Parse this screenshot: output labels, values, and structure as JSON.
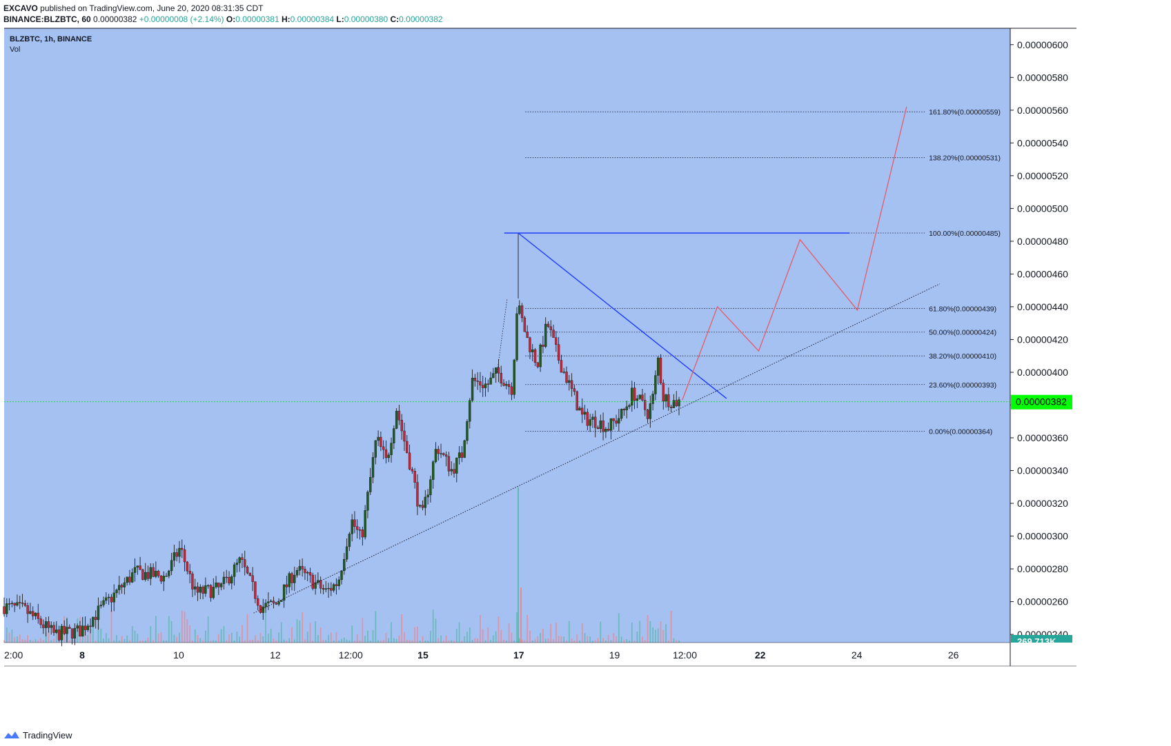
{
  "header": {
    "author": "EXCAVO",
    "published": "published on TradingView.com, June 20, 2020 08:31:35 CDT",
    "symbol": "BINANCE:BLZBTC, 60",
    "last": "0.00000382",
    "change": "+0.00000008 (+2.14%)",
    "o_label": "O:",
    "o": "0.00000381",
    "h_label": "H:",
    "h": "0.00000384",
    "l_label": "L:",
    "l": "0.00000380",
    "c_label": "C:",
    "c": "0.00000382"
  },
  "legend": {
    "title": "BLZBTC, 1h, BINANCE",
    "vol": "Vol"
  },
  "footer": {
    "brand": "TradingView"
  },
  "colors": {
    "background": "#a5c1f2",
    "up": "#26a69a",
    "down": "#ef5350",
    "candle_up_body": "#1e5b1c",
    "candle_down_body": "#c6263a",
    "price_line": "#00e000",
    "price_badge": "#00ff00",
    "resistance": "#1e3cff",
    "projection": "#e06070",
    "volume_badge": "#26a69a"
  },
  "chart_data": {
    "type": "candlestick",
    "y_axis": {
      "range": [
        2.35e-06,
        6.1e-06
      ],
      "ticks": [
        "0.00000240",
        "0.00000260",
        "0.00000280",
        "0.00000300",
        "0.00000320",
        "0.00000340",
        "0.00000360",
        "0.00000380",
        "0.00000400",
        "0.00000420",
        "0.00000440",
        "0.00000460",
        "0.00000480",
        "0.00000500",
        "0.00000520",
        "0.00000540",
        "0.00000560",
        "0.00000580",
        "0.00000600"
      ],
      "tick_values": [
        2.4,
        2.6,
        2.8,
        3.0,
        3.2,
        3.4,
        3.6,
        3.8,
        4.0,
        4.2,
        4.4,
        4.6,
        4.8,
        5.0,
        5.2,
        5.4,
        5.6,
        5.8,
        6.0
      ]
    },
    "x_axis": {
      "ticks": [
        {
          "label": "2:00",
          "bold": false,
          "pos": 0.0
        },
        {
          "label": "8",
          "bold": true,
          "pos": 0.0775
        },
        {
          "label": "10",
          "bold": false,
          "pos": 0.1735
        },
        {
          "label": "12",
          "bold": false,
          "pos": 0.2695
        },
        {
          "label": "12:00",
          "bold": false,
          "pos": 0.3445
        },
        {
          "label": "15",
          "bold": true,
          "pos": 0.4163
        },
        {
          "label": "17",
          "bold": true,
          "pos": 0.5115
        },
        {
          "label": "19",
          "bold": false,
          "pos": 0.6067
        },
        {
          "label": "12:00",
          "bold": false,
          "pos": 0.6766
        },
        {
          "label": "22",
          "bold": true,
          "pos": 0.7515
        },
        {
          "label": "24",
          "bold": false,
          "pos": 0.8475
        },
        {
          "label": "26",
          "bold": false,
          "pos": 0.9435
        }
      ]
    },
    "last_price": {
      "label": "0.00000382",
      "value": 3.82
    },
    "volume_label": "269.713K",
    "fib_levels": [
      {
        "label": "161.80%(0.00000559)",
        "value": 5.59
      },
      {
        "label": "138.20%(0.00000531)",
        "value": 5.31
      },
      {
        "label": "100.00%(0.00000485)",
        "value": 4.85
      },
      {
        "label": "61.80%(0.00000439)",
        "value": 4.39
      },
      {
        "label": "50.00%(0.00000424)",
        "value": 4.245
      },
      {
        "label": "38.20%(0.00000410)",
        "value": 4.1
      },
      {
        "label": "23.60%(0.00000393)",
        "value": 3.925
      },
      {
        "label": "0.00%(0.00000364)",
        "value": 3.64
      }
    ],
    "resistance_horizontal": {
      "value": 4.85,
      "from": 0.497,
      "to": 0.84
    },
    "resistance_diagonal": [
      {
        "t": 0.511,
        "v": 4.85
      },
      {
        "t": 0.718,
        "v": 3.84
      }
    ],
    "support_diagonal": [
      {
        "t": 0.248,
        "v": 2.53
      },
      {
        "t": 0.93,
        "v": 4.54
      }
    ],
    "projection_path": [
      {
        "t": 0.674,
        "v": 3.83
      },
      {
        "t": 0.709,
        "v": 4.4
      },
      {
        "t": 0.75,
        "v": 4.13
      },
      {
        "t": 0.791,
        "v": 4.81
      },
      {
        "t": 0.848,
        "v": 4.38
      },
      {
        "t": 0.897,
        "v": 5.62
      }
    ],
    "candle_path": [
      [
        0.0,
        2.57
      ],
      [
        0.02,
        2.55
      ],
      [
        0.05,
        2.4
      ],
      [
        0.075,
        2.42
      ],
      [
        0.1,
        2.58
      ],
      [
        0.13,
        2.78
      ],
      [
        0.16,
        2.75
      ],
      [
        0.175,
        2.93
      ],
      [
        0.19,
        2.65
      ],
      [
        0.215,
        2.68
      ],
      [
        0.235,
        2.85
      ],
      [
        0.255,
        2.57
      ],
      [
        0.27,
        2.58
      ],
      [
        0.29,
        2.8
      ],
      [
        0.32,
        2.66
      ],
      [
        0.332,
        2.72
      ],
      [
        0.345,
        3.1
      ],
      [
        0.355,
        2.98
      ],
      [
        0.37,
        3.6
      ],
      [
        0.38,
        3.45
      ],
      [
        0.39,
        3.78
      ],
      [
        0.405,
        3.4
      ],
      [
        0.415,
        3.1
      ],
      [
        0.43,
        3.55
      ],
      [
        0.445,
        3.4
      ],
      [
        0.455,
        3.5
      ],
      [
        0.465,
        3.95
      ],
      [
        0.48,
        3.92
      ],
      [
        0.49,
        4.0
      ],
      [
        0.505,
        3.9
      ],
      [
        0.51,
        4.42
      ],
      [
        0.52,
        4.2
      ],
      [
        0.53,
        4.05
      ],
      [
        0.54,
        4.3
      ],
      [
        0.55,
        4.1
      ],
      [
        0.56,
        3.95
      ],
      [
        0.575,
        3.72
      ],
      [
        0.59,
        3.7
      ],
      [
        0.6,
        3.66
      ],
      [
        0.615,
        3.75
      ],
      [
        0.625,
        3.88
      ],
      [
        0.64,
        3.75
      ],
      [
        0.645,
        3.85
      ],
      [
        0.65,
        4.08
      ],
      [
        0.655,
        3.85
      ],
      [
        0.665,
        3.82
      ],
      [
        0.672,
        3.82
      ]
    ],
    "volume_spike": {
      "t": 0.511,
      "value_frac": 0.85
    }
  }
}
